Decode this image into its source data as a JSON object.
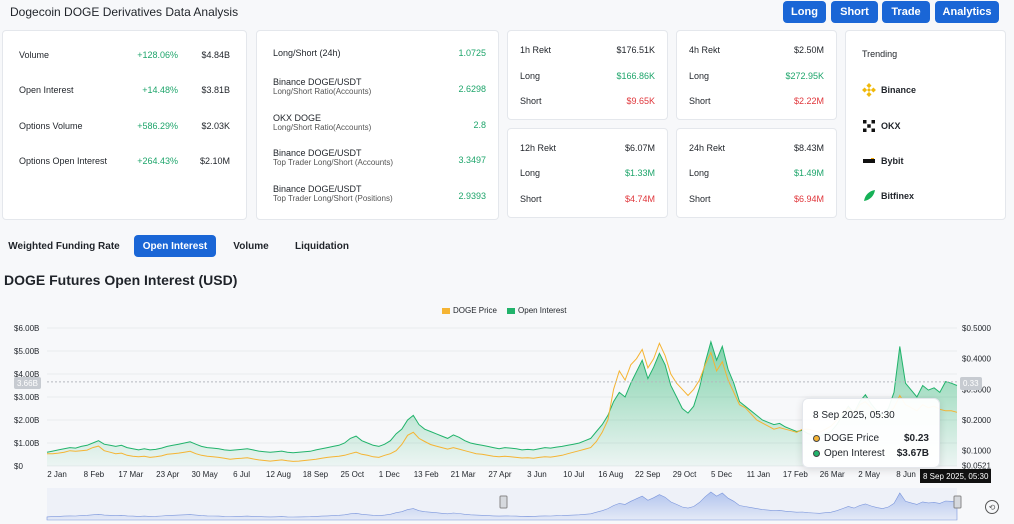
{
  "header": {
    "title": "Dogecoin DOGE Derivatives Data Analysis",
    "buttons": [
      "Long",
      "Short",
      "Trade",
      "Analytics"
    ]
  },
  "overview": [
    {
      "label": "Volume",
      "change": "+128.06%",
      "value": "$4.84B"
    },
    {
      "label": "Open Interest",
      "change": "+14.48%",
      "value": "$3.81B"
    },
    {
      "label": "Options Volume",
      "change": "+586.29%",
      "value": "$2.03K"
    },
    {
      "label": "Options Open Interest",
      "change": "+264.43%",
      "value": "$2.10M"
    }
  ],
  "long_short": [
    {
      "name": "Long/Short (24h)",
      "sub": "",
      "value": "1.0725"
    },
    {
      "name": "Binance DOGE/USDT",
      "sub": "Long/Short Ratio(Accounts)",
      "value": "2.6298"
    },
    {
      "name": "OKX DOGE",
      "sub": "Long/Short Ratio(Accounts)",
      "value": "2.8"
    },
    {
      "name": "Binance DOGE/USDT",
      "sub": "Top Trader Long/Short (Accounts)",
      "value": "3.3497"
    },
    {
      "name": "Binance DOGE/USDT",
      "sub": "Top Trader Long/Short (Positions)",
      "value": "2.9393"
    }
  ],
  "rekt": [
    {
      "title": "1h Rekt",
      "total": "$176.51K",
      "long_label": "Long",
      "long": "$166.86K",
      "short_label": "Short",
      "short": "$9.65K"
    },
    {
      "title": "4h Rekt",
      "total": "$2.50M",
      "long_label": "Long",
      "long": "$272.95K",
      "short_label": "Short",
      "short": "$2.22M"
    },
    {
      "title": "12h Rekt",
      "total": "$6.07M",
      "long_label": "Long",
      "long": "$1.33M",
      "short_label": "Short",
      "short": "$4.74M"
    },
    {
      "title": "24h Rekt",
      "total": "$8.43M",
      "long_label": "Long",
      "long": "$1.49M",
      "short_label": "Short",
      "short": "$6.94M"
    }
  ],
  "trending": {
    "title": "Trending",
    "items": [
      {
        "name": "Binance",
        "icon": "binance-icon",
        "color": "#f0b90b"
      },
      {
        "name": "OKX",
        "icon": "okx-icon",
        "color": "#111111"
      },
      {
        "name": "Bybit",
        "icon": "bybit-icon",
        "color": "#111111"
      },
      {
        "name": "Bitfinex",
        "icon": "bitfinex-icon",
        "color": "#16b157"
      }
    ]
  },
  "tabs": [
    "Weighted Funding Rate",
    "Open Interest",
    "Volume",
    "Liquidation"
  ],
  "active_tab": 1,
  "chart_title": "DOGE Futures Open Interest (USD)",
  "tooltip": {
    "date": "8 Sep 2025, 05:30",
    "price_label": "DOGE Price",
    "price_value": "$0.23",
    "oi_label": "Open Interest",
    "oi_value": "$3.67B"
  },
  "hover": {
    "date": "8 Sep 2025, 05:30",
    "right_value": "0.33",
    "left_value": "3.66B"
  },
  "chart_data": {
    "type": "area",
    "title": "DOGE Futures Open Interest (USD)",
    "legend": [
      "DOGE Price",
      "Open Interest"
    ],
    "legend_position": "top-center",
    "colors": {
      "price": "#f5b433",
      "oi": "#21b36b"
    },
    "x_ticks": [
      "2 Jan",
      "8 Feb",
      "17 Mar",
      "23 Apr",
      "30 May",
      "6 Jul",
      "12 Aug",
      "18 Sep",
      "25 Oct",
      "1 Dec",
      "13 Feb",
      "21 Mar",
      "27 Apr",
      "3 Jun",
      "10 Jul",
      "16 Aug",
      "22 Sep",
      "29 Oct",
      "5 Dec",
      "11 Jan",
      "17 Feb",
      "26 Mar",
      "2 May",
      "8 Jun",
      "15 Jun"
    ],
    "y_left_ticks": [
      "$0",
      "$1.00B",
      "$2.00B",
      "$3.00B",
      "$4.00B",
      "$5.00B",
      "$6.00B"
    ],
    "y_left_range": [
      0,
      6
    ],
    "y_right_ticks": [
      "$0.0521",
      "$0.1000",
      "$0.2000",
      "$0.3000",
      "$0.4000",
      "$0.5000"
    ],
    "y_right_range": [
      0.05,
      0.5
    ],
    "open_interest_billion": [
      0.6,
      0.65,
      0.7,
      0.75,
      0.8,
      0.78,
      0.85,
      0.9,
      1.0,
      1.1,
      0.95,
      0.9,
      0.85,
      0.9,
      0.8,
      0.75,
      0.7,
      0.75,
      0.7,
      0.72,
      0.78,
      0.85,
      0.9,
      0.95,
      1.0,
      1.05,
      0.95,
      0.85,
      0.8,
      0.78,
      0.75,
      0.7,
      0.68,
      0.7,
      0.72,
      0.75,
      0.7,
      0.65,
      0.62,
      0.6,
      0.62,
      0.65,
      0.6,
      0.58,
      0.6,
      0.62,
      0.64,
      0.7,
      0.75,
      0.8,
      0.85,
      0.9,
      1.0,
      1.2,
      1.3,
      1.1,
      1.0,
      0.9,
      0.85,
      0.95,
      1.1,
      1.4,
      1.6,
      2.0,
      2.2,
      1.8,
      1.6,
      1.5,
      1.4,
      1.3,
      1.2,
      1.35,
      1.25,
      1.1,
      1.0,
      0.95,
      0.9,
      0.85,
      0.8,
      0.75,
      0.8,
      0.78,
      0.75,
      0.7,
      0.72,
      0.7,
      0.75,
      0.8,
      0.78,
      0.82,
      0.85,
      0.9,
      0.95,
      1.0,
      1.1,
      1.2,
      1.5,
      1.8,
      2.2,
      2.8,
      3.2,
      3.0,
      3.6,
      4.1,
      4.6,
      3.8,
      4.3,
      4.9,
      4.4,
      3.5,
      3.0,
      2.5,
      2.3,
      2.6,
      3.4,
      4.5,
      5.4,
      4.6,
      5.2,
      4.2,
      3.6,
      2.8,
      2.6,
      2.4,
      2.2,
      2.0,
      1.9,
      1.8,
      1.85,
      1.7,
      1.6,
      1.5,
      1.55,
      1.4,
      1.35,
      1.3,
      1.4,
      1.5,
      1.8,
      2.2,
      2.6,
      2.3,
      2.8,
      3.1,
      2.7,
      2.4,
      2.2,
      2.5,
      3.2,
      5.2,
      3.6,
      3.3,
      3.0,
      3.5,
      3.3,
      3.4,
      3.2,
      3.67,
      3.6,
      3.5
    ],
    "doge_price_usd": [
      0.09,
      0.09,
      0.092,
      0.095,
      0.1,
      0.098,
      0.1,
      0.102,
      0.11,
      0.115,
      0.1,
      0.095,
      0.09,
      0.092,
      0.085,
      0.082,
      0.08,
      0.082,
      0.078,
      0.08,
      0.083,
      0.088,
      0.09,
      0.092,
      0.095,
      0.098,
      0.09,
      0.085,
      0.082,
      0.08,
      0.078,
      0.075,
      0.072,
      0.074,
      0.075,
      0.077,
      0.073,
      0.07,
      0.068,
      0.066,
      0.068,
      0.07,
      0.067,
      0.065,
      0.066,
      0.068,
      0.07,
      0.072,
      0.075,
      0.078,
      0.08,
      0.082,
      0.085,
      0.09,
      0.095,
      0.088,
      0.085,
      0.08,
      0.078,
      0.085,
      0.09,
      0.1,
      0.12,
      0.15,
      0.16,
      0.14,
      0.13,
      0.12,
      0.115,
      0.11,
      0.105,
      0.11,
      0.105,
      0.1,
      0.095,
      0.09,
      0.088,
      0.085,
      0.082,
      0.08,
      0.082,
      0.08,
      0.078,
      0.076,
      0.077,
      0.075,
      0.078,
      0.08,
      0.079,
      0.082,
      0.085,
      0.09,
      0.095,
      0.1,
      0.105,
      0.11,
      0.13,
      0.16,
      0.2,
      0.3,
      0.36,
      0.33,
      0.38,
      0.4,
      0.43,
      0.37,
      0.4,
      0.45,
      0.41,
      0.35,
      0.32,
      0.3,
      0.28,
      0.3,
      0.33,
      0.38,
      0.42,
      0.36,
      0.39,
      0.33,
      0.29,
      0.25,
      0.24,
      0.22,
      0.2,
      0.19,
      0.18,
      0.17,
      0.175,
      0.17,
      0.165,
      0.16,
      0.17,
      0.17,
      0.165,
      0.16,
      0.17,
      0.18,
      0.2,
      0.22,
      0.24,
      0.22,
      0.25,
      0.26,
      0.24,
      0.22,
      0.21,
      0.22,
      0.24,
      0.28,
      0.25,
      0.24,
      0.23,
      0.25,
      0.24,
      0.245,
      0.235,
      0.23,
      0.23,
      0.225
    ]
  }
}
